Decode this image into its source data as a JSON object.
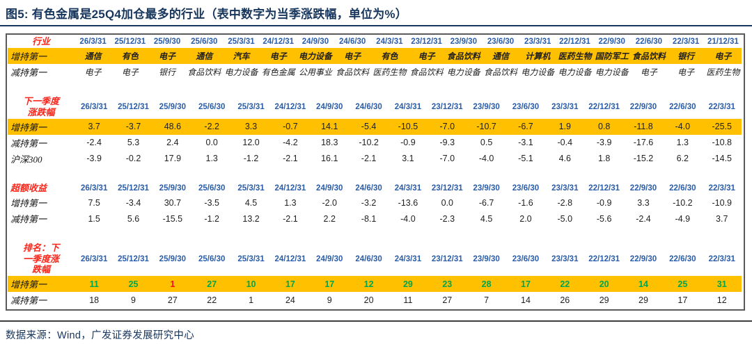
{
  "title": "图5:  有色金属是25Q4加仓最多的行业（表中数字为当季涨跌幅，单位为%）",
  "source_note": "数据来源：Wind，广发证券发展研究中心",
  "colors": {
    "title_navy": "#17365D",
    "date_blue": "#2A5CA8",
    "label_red": "#F9261B",
    "highlight_yellow": "#FFC000",
    "rank_green": "#00A54F",
    "rank_red": "#F50F0F",
    "border_gray": "#5A5A5A"
  },
  "table": {
    "sections": [
      {
        "id": "industry",
        "header_label": "行业",
        "cjk_values": true,
        "dates": [
          "26/3/31",
          "25/12/31",
          "25/9/30",
          "25/6/30",
          "25/3/31",
          "24/12/31",
          "24/9/30",
          "24/6/30",
          "24/3/31",
          "23/12/31",
          "23/9/30",
          "23/6/30",
          "23/3/31",
          "22/12/31",
          "22/9/30",
          "22/6/30",
          "22/3/31",
          "21/12/31"
        ],
        "rows": [
          {
            "label": "增持第一",
            "highlight": true,
            "values": [
              "通信",
              "有色",
              "电子",
              "通信",
              "汽车",
              "电子",
              "电力设备",
              "电子",
              "有色",
              "电子",
              "食品饮料",
              "通信",
              "计算机",
              "医药生物",
              "国防军工",
              "食品饮料",
              "银行",
              "电子"
            ]
          },
          {
            "label": "减持第一",
            "highlight": false,
            "values": [
              "电子",
              "电子",
              "银行",
              "食品饮料",
              "电力设备",
              "有色金属",
              "公用事业",
              "食品饮料",
              "医药生物",
              "食品饮料",
              "电力设备",
              "食品饮料",
              "电力设备",
              "电力设备",
              "电力设备",
              "电子",
              "电子",
              "医药生物"
            ]
          }
        ]
      },
      {
        "id": "nextq",
        "header_label": "下一季度\n涨跌幅",
        "cjk_values": false,
        "dates": [
          "26/3/31",
          "25/12/31",
          "25/9/30",
          "25/6/30",
          "25/3/31",
          "24/12/31",
          "24/9/30",
          "24/6/30",
          "24/3/31",
          "23/12/31",
          "23/9/30",
          "23/6/30",
          "23/3/31",
          "22/12/31",
          "22/9/30",
          "22/6/30",
          "22/3/31"
        ],
        "rows": [
          {
            "label": "增持第一",
            "highlight": true,
            "values": [
              "3.7",
              "-3.7",
              "48.6",
              "-2.2",
              "3.3",
              "-0.7",
              "14.1",
              "-5.4",
              "-10.5",
              "-7.0",
              "-10.7",
              "-6.7",
              "1.9",
              "0.8",
              "-11.8",
              "-4.0",
              "-25.5"
            ]
          },
          {
            "label": "减持第一",
            "highlight": false,
            "values": [
              "-2.4",
              "5.3",
              "2.4",
              "0.0",
              "12.0",
              "-4.2",
              "18.3",
              "-10.2",
              "-0.9",
              "-9.3",
              "0.5",
              "-3.1",
              "-0.4",
              "-3.9",
              "-17.6",
              "1.3",
              "-10.8"
            ]
          },
          {
            "label": "沪深300",
            "highlight": false,
            "values": [
              "-3.9",
              "-0.2",
              "17.9",
              "1.3",
              "-1.2",
              "-2.1",
              "16.1",
              "-2.1",
              "3.1",
              "-7.0",
              "-4.0",
              "-5.1",
              "4.6",
              "1.8",
              "-15.2",
              "6.2",
              "-14.5"
            ]
          }
        ]
      },
      {
        "id": "excess",
        "header_label": "超额收益",
        "cjk_values": false,
        "dates": [
          "26/3/31",
          "25/12/31",
          "25/9/30",
          "25/6/30",
          "25/3/31",
          "24/12/31",
          "24/9/30",
          "24/6/30",
          "24/3/31",
          "23/12/31",
          "23/9/30",
          "23/6/30",
          "23/3/31",
          "22/12/31",
          "22/9/30",
          "22/6/30",
          "22/3/31"
        ],
        "rows": [
          {
            "label": "增持第一",
            "highlight": false,
            "values": [
              "7.5",
              "-3.4",
              "30.7",
              "-3.5",
              "4.5",
              "1.3",
              "-2.0",
              "-3.2",
              "-13.6",
              "0.0",
              "-6.7",
              "-1.6",
              "-2.8",
              "-0.9",
              "3.3",
              "-10.2",
              "-10.9"
            ]
          },
          {
            "label": "减持第一",
            "highlight": false,
            "values": [
              "1.5",
              "5.6",
              "-15.5",
              "-1.2",
              "13.2",
              "-2.1",
              "2.2",
              "-8.1",
              "-4.0",
              "-2.3",
              "4.5",
              "2.0",
              "-5.0",
              "-5.6",
              "-2.4",
              "-4.9",
              "3.7"
            ]
          }
        ]
      },
      {
        "id": "rank",
        "header_label": "排名：下\n一季度涨\n跌幅",
        "cjk_values": false,
        "dates": [
          "26/3/31",
          "25/12/31",
          "25/9/30",
          "25/6/30",
          "25/3/31",
          "24/12/31",
          "24/9/30",
          "24/6/30",
          "24/3/31",
          "23/12/31",
          "23/9/30",
          "23/6/30",
          "23/3/31",
          "22/12/31",
          "22/9/30",
          "22/6/30",
          "22/3/31"
        ],
        "rows": [
          {
            "label": "增持第一",
            "highlight": true,
            "values": [
              "11",
              "25",
              "1",
              "27",
              "10",
              "17",
              "17",
              "12",
              "29",
              "23",
              "28",
              "17",
              "22",
              "20",
              "14",
              "25",
              "31"
            ],
            "value_colors": [
              "green",
              "green",
              "redv",
              "green",
              "green",
              "green",
              "green",
              "green",
              "green",
              "green",
              "green",
              "green",
              "green",
              "green",
              "green",
              "green",
              "green"
            ]
          },
          {
            "label": "减持第一",
            "highlight": false,
            "values": [
              "18",
              "9",
              "27",
              "22",
              "1",
              "24",
              "9",
              "20",
              "11",
              "27",
              "7",
              "14",
              "26",
              "29",
              "29",
              "17",
              "12"
            ]
          }
        ]
      }
    ]
  }
}
